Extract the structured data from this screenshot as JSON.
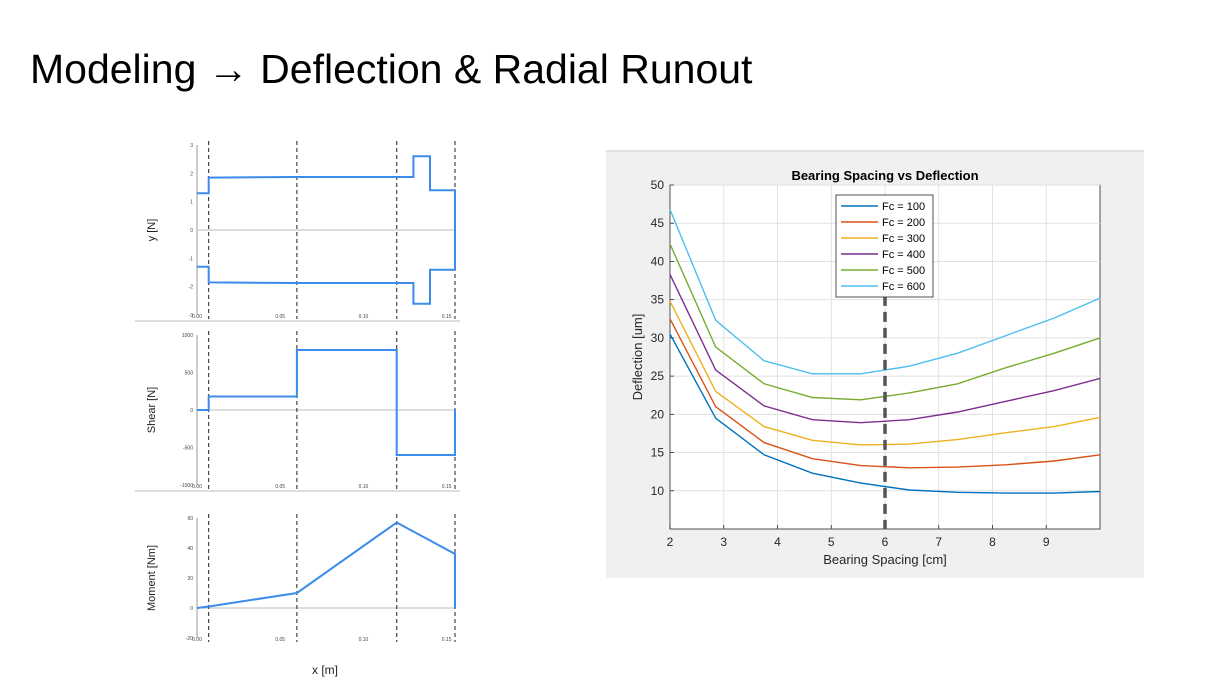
{
  "slide": {
    "title": "Modeling → Deflection & Radial Runout"
  },
  "left_figure": {
    "xlabel": "x [m]",
    "xticks": [
      0.0,
      0.05,
      0.1,
      0.15
    ],
    "xtick_labels": [
      "0.00",
      "0.05",
      "0.10",
      "0.15"
    ],
    "xlim": [
      0,
      0.155
    ],
    "dashed_lines_x": [
      0.007,
      0.06,
      0.12,
      0.155
    ]
  },
  "chart_data": [
    {
      "type": "line",
      "title": "",
      "xlabel": "",
      "ylabel": "y [N]",
      "ylim": [
        -3,
        3
      ],
      "yticks": [
        -3,
        -2,
        -1,
        0,
        1,
        2,
        3
      ],
      "ytick_labels": [
        "-3",
        "-2",
        "-1",
        "0",
        "1",
        "2",
        "3"
      ],
      "grid": false,
      "series": [
        {
          "x": [
            0,
            0.007,
            0.007,
            0.06,
            0.13,
            0.13,
            0.14,
            0.14,
            0.155,
            0.155
          ],
          "y": [
            1.3,
            1.3,
            1.85,
            1.87,
            1.87,
            2.6,
            2.6,
            1.4,
            1.4,
            -1.4
          ]
        },
        {
          "x": [
            0,
            0.007,
            0.007,
            0.06,
            0.13,
            0.13,
            0.14,
            0.14,
            0.155
          ],
          "y": [
            -1.3,
            -1.3,
            -1.85,
            -1.87,
            -1.87,
            -2.6,
            -2.6,
            -1.4,
            -1.4
          ]
        }
      ]
    },
    {
      "type": "line",
      "title": "",
      "xlabel": "",
      "ylabel": "Shear [N]",
      "ylim": [
        -1000,
        1000
      ],
      "yticks": [
        -1000,
        -500,
        0,
        500,
        1000
      ],
      "ytick_labels": [
        "-1000",
        "-500",
        "0",
        "500",
        "1000"
      ],
      "grid": false,
      "series": [
        {
          "x": [
            0,
            0.007,
            0.007,
            0.06,
            0.06,
            0.12,
            0.12,
            0.155,
            0.155
          ],
          "y": [
            0,
            0,
            180,
            180,
            800,
            800,
            -600,
            -600,
            0
          ]
        }
      ]
    },
    {
      "type": "line",
      "title": "",
      "xlabel": "",
      "ylabel": "Moment [Nm]",
      "ylim": [
        -20,
        60
      ],
      "yticks": [
        -20,
        0,
        20,
        40,
        60
      ],
      "ytick_labels": [
        "-20",
        "0",
        "20",
        "40",
        "60"
      ],
      "grid": false,
      "series": [
        {
          "x": [
            0,
            0.007,
            0.06,
            0.12,
            0.155,
            0.155
          ],
          "y": [
            0,
            1,
            10,
            57,
            36,
            0
          ]
        }
      ]
    },
    {
      "type": "line",
      "title": "Bearing Spacing vs Deflection",
      "xlabel": "Bearing Spacing [cm]",
      "ylabel": "Deflection [um]",
      "xlim": [
        2,
        10
      ],
      "ylim": [
        5,
        50
      ],
      "xticks": [
        2,
        3,
        4,
        5,
        6,
        7,
        8,
        9
      ],
      "yticks": [
        10,
        15,
        20,
        25,
        30,
        35,
        40,
        45,
        50
      ],
      "grid": true,
      "legend_position": "top-center",
      "dashed_line_x": 6,
      "x": [
        2,
        2.85,
        3.75,
        4.65,
        5.55,
        6.45,
        7.35,
        8.25,
        9.15,
        10
      ],
      "series": [
        {
          "name": "Fc = 100",
          "color": "#0072BD",
          "values": [
            30.5,
            19.5,
            14.7,
            12.3,
            11.0,
            10.1,
            9.8,
            9.7,
            9.7,
            9.9
          ]
        },
        {
          "name": "Fc = 200",
          "color": "#D95319",
          "values": [
            32.5,
            21.0,
            16.3,
            14.2,
            13.3,
            13.0,
            13.1,
            13.4,
            13.9,
            14.7
          ]
        },
        {
          "name": "Fc = 300",
          "color": "#EDB120",
          "values": [
            34.8,
            23.0,
            18.4,
            16.6,
            16.0,
            16.1,
            16.7,
            17.6,
            18.4,
            19.6
          ]
        },
        {
          "name": "Fc = 400",
          "color": "#7E2F8E",
          "values": [
            38.3,
            25.8,
            21.1,
            19.3,
            18.9,
            19.3,
            20.3,
            21.7,
            23.1,
            24.7
          ]
        },
        {
          "name": "Fc = 500",
          "color": "#77AC30",
          "values": [
            42.3,
            28.8,
            24.0,
            22.2,
            21.9,
            22.8,
            24.0,
            26.1,
            28.0,
            30.0
          ]
        },
        {
          "name": "Fc = 600",
          "color": "#4DBEEE",
          "values": [
            46.8,
            32.3,
            27.0,
            25.3,
            25.3,
            26.3,
            28.0,
            30.3,
            32.6,
            35.2
          ]
        }
      ]
    }
  ]
}
